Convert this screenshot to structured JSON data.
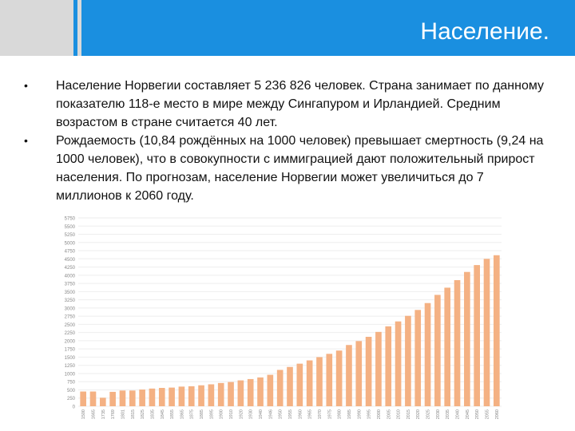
{
  "slide": {
    "title": "Население.",
    "bullets": [
      "Население Норвегии составляет 5 236 826 человек. Страна занимает по данному показателю 118-е место в мире между Сингапуром и Ирландией. Средним возрастом в стране считается 40 лет.",
      "Рождаемость (10,84 рождённых на 1000 человек) превышает смертность (9,24 на 1000 человек), что в совокупности с иммиграцией дают положительный прирост населения. По прогнозам, население Норвегии может увеличиться до 7 миллионов к 2060 году."
    ],
    "bullet_glyph": "•"
  },
  "colors": {
    "header": "#1a8fe0",
    "bar": "#f4b183",
    "grid": "#eeeeee"
  },
  "chart_data": {
    "type": "bar",
    "ylim": [
      0,
      5750
    ],
    "yticks": [
      "0",
      "250",
      "500",
      "750",
      "1000",
      "1250",
      "1500",
      "1750",
      "2000",
      "2250",
      "2500",
      "2750",
      "3000",
      "3250",
      "3500",
      "3750",
      "4000",
      "4250",
      "4500",
      "4750",
      "5000",
      "5250",
      "5500",
      "5750"
    ],
    "categories": [
      "1500",
      "1665",
      "1735",
      "1769",
      "1801",
      "1815",
      "1825",
      "1835",
      "1845",
      "1855",
      "1865",
      "1875",
      "1885",
      "1895",
      "1900",
      "1910",
      "1920",
      "1930",
      "1940",
      "1946",
      "1950",
      "1955",
      "1960",
      "1965",
      "1970",
      "1975",
      "1980",
      "1985",
      "1990",
      "1995",
      "2000",
      "2005",
      "2010",
      "2015",
      "2020",
      "2025",
      "2030",
      "2035",
      "2040",
      "2045",
      "2050",
      "2055",
      "2060"
    ],
    "values": [
      450,
      450,
      260,
      440,
      480,
      480,
      510,
      540,
      560,
      570,
      600,
      610,
      640,
      670,
      710,
      740,
      790,
      830,
      880,
      960,
      1110,
      1200,
      1300,
      1400,
      1500,
      1600,
      1700,
      1870,
      1990,
      2120,
      2270,
      2440,
      2590,
      2760,
      2940,
      3150,
      3400,
      3620,
      3850,
      4100,
      4310,
      4500,
      4610
    ],
    "xlabel": "",
    "ylabel": "",
    "grid": true,
    "legend": "none"
  }
}
